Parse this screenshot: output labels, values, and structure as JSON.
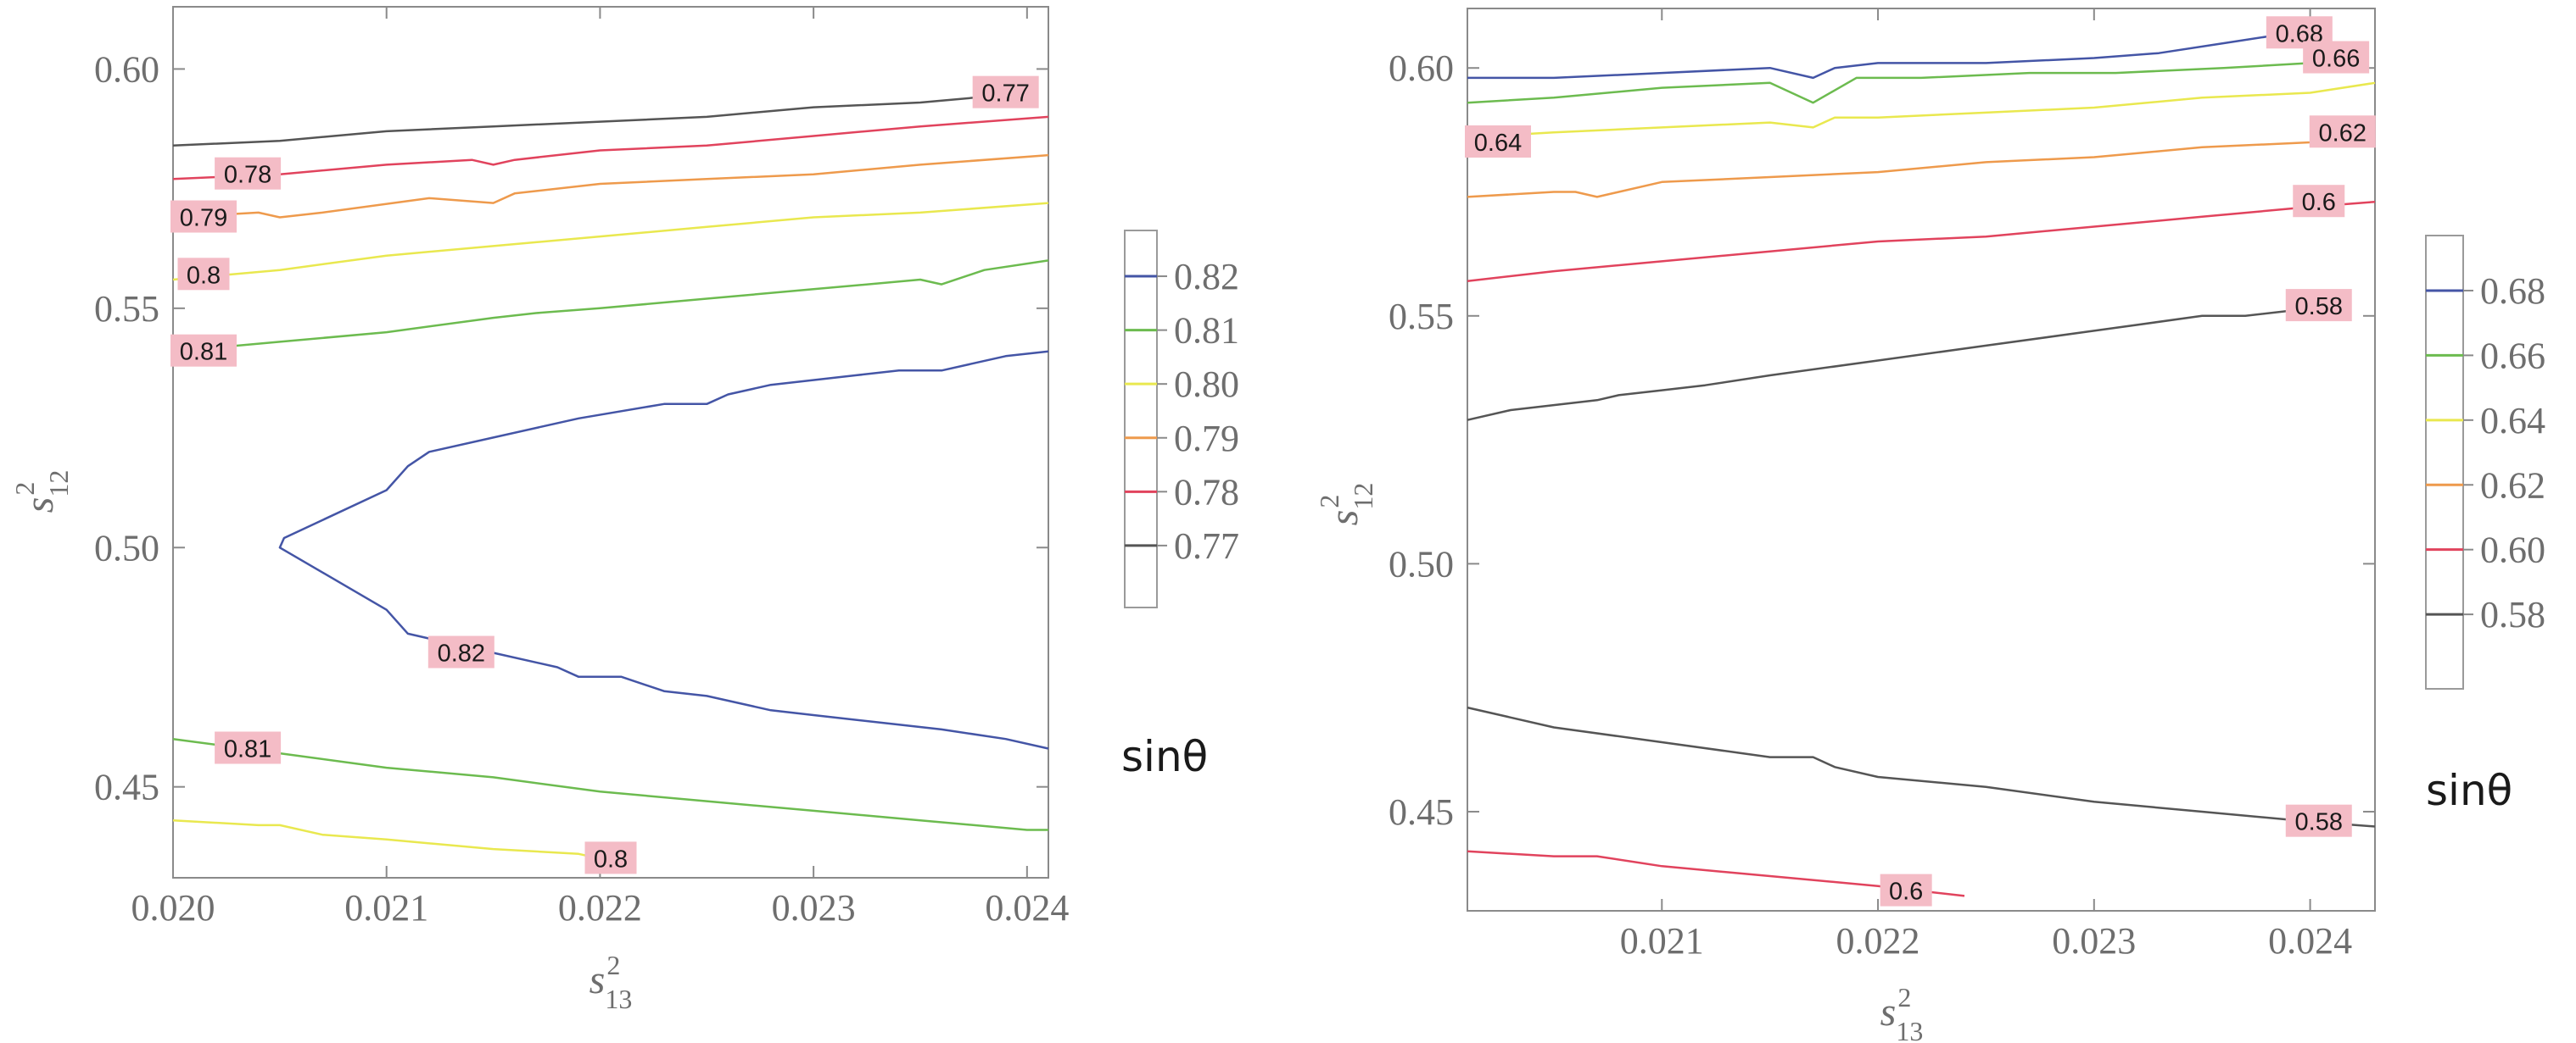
{
  "chart_data": [
    {
      "type": "line",
      "title": "",
      "xlabel": "s",
      "xlabel_sup": "2",
      "xlabel_sub": "13",
      "ylabel": "s",
      "ylabel_sup": "2",
      "ylabel_sub": "12",
      "xlim": [
        0.02,
        0.0241
      ],
      "ylim": [
        0.431,
        0.613
      ],
      "xticks": [
        "0.020",
        "0.021",
        "0.022",
        "0.023",
        "0.024"
      ],
      "yticks": [
        "0.45",
        "0.50",
        "0.55",
        "0.60"
      ],
      "legend_title": "sinθ",
      "legend": [
        {
          "label": "0.82",
          "color": "#4455a6"
        },
        {
          "label": "0.81",
          "color": "#6cbb4f"
        },
        {
          "label": "0.80",
          "color": "#e9e84f"
        },
        {
          "label": "0.79",
          "color": "#ee9a4c"
        },
        {
          "label": "0.78",
          "color": "#e1435d"
        },
        {
          "label": "0.77",
          "color": "#555555"
        }
      ],
      "series": [
        {
          "name": "0.77",
          "color": "#555555",
          "x": [
            0.02,
            0.0205,
            0.021,
            0.0215,
            0.022,
            0.0225,
            0.023,
            0.0235,
            0.024
          ],
          "y": [
            0.584,
            0.585,
            0.587,
            0.588,
            0.589,
            0.59,
            0.592,
            0.593,
            0.595
          ]
        },
        {
          "name": "0.78",
          "color": "#e1435d",
          "x": [
            0.02,
            0.0205,
            0.021,
            0.0214,
            0.0215,
            0.0216,
            0.022,
            0.0225,
            0.023,
            0.0235,
            0.0241
          ],
          "y": [
            0.577,
            0.578,
            0.58,
            0.581,
            0.58,
            0.581,
            0.583,
            0.584,
            0.586,
            0.588,
            0.59
          ]
        },
        {
          "name": "0.79",
          "color": "#ee9a4c",
          "x": [
            0.02,
            0.0204,
            0.0205,
            0.0207,
            0.0212,
            0.0215,
            0.0216,
            0.022,
            0.0225,
            0.023,
            0.0235,
            0.0241
          ],
          "y": [
            0.569,
            0.57,
            0.569,
            0.57,
            0.573,
            0.572,
            0.574,
            0.576,
            0.577,
            0.578,
            0.58,
            0.582
          ]
        },
        {
          "name": "0.80 (upper)",
          "color": "#e9e84f",
          "x": [
            0.02,
            0.0205,
            0.021,
            0.0215,
            0.022,
            0.0225,
            0.023,
            0.0235,
            0.0241
          ],
          "y": [
            0.556,
            0.558,
            0.561,
            0.563,
            0.565,
            0.567,
            0.569,
            0.57,
            0.572
          ]
        },
        {
          "name": "0.81 (upper)",
          "color": "#6cbb4f",
          "x": [
            0.02,
            0.0205,
            0.021,
            0.0215,
            0.0217,
            0.022,
            0.0225,
            0.023,
            0.0235,
            0.0236,
            0.0238,
            0.0241
          ],
          "y": [
            0.541,
            0.543,
            0.545,
            0.548,
            0.549,
            0.55,
            0.552,
            0.554,
            0.556,
            0.555,
            0.558,
            0.56
          ]
        },
        {
          "name": "0.82",
          "color": "#4455a6",
          "x": [
            0.0241,
            0.0239,
            0.0236,
            0.0234,
            0.0232,
            0.0228,
            0.0226,
            0.0225,
            0.0223,
            0.0219,
            0.0215,
            0.0212,
            0.0211,
            0.021,
            0.02052,
            0.0205,
            0.021,
            0.0211,
            0.0212,
            0.0215,
            0.0218,
            0.0219,
            0.0221,
            0.0223,
            0.0225,
            0.0228,
            0.023,
            0.0234,
            0.0236,
            0.0239,
            0.0241
          ],
          "y": [
            0.541,
            0.54,
            0.537,
            0.537,
            0.536,
            0.534,
            0.532,
            0.53,
            0.53,
            0.527,
            0.523,
            0.52,
            0.517,
            0.512,
            0.502,
            0.5,
            0.487,
            0.482,
            0.481,
            0.478,
            0.475,
            0.473,
            0.473,
            0.47,
            0.469,
            0.466,
            0.465,
            0.463,
            0.462,
            0.46,
            0.458
          ]
        },
        {
          "name": "0.81 (lower)",
          "color": "#6cbb4f",
          "x": [
            0.02,
            0.0205,
            0.021,
            0.0215,
            0.022,
            0.0225,
            0.023,
            0.0235,
            0.024,
            0.0241
          ],
          "y": [
            0.46,
            0.457,
            0.454,
            0.452,
            0.449,
            0.447,
            0.445,
            0.443,
            0.441,
            0.441
          ]
        },
        {
          "name": "0.80 (lower)",
          "color": "#e9e84f",
          "x": [
            0.02,
            0.0204,
            0.0205,
            0.0207,
            0.021,
            0.0215,
            0.0219,
            0.022
          ],
          "y": [
            0.443,
            0.442,
            0.442,
            0.44,
            0.439,
            0.437,
            0.436,
            0.435
          ]
        }
      ],
      "contour_labels": [
        {
          "text": "0.77",
          "x": 0.0239,
          "y": 0.595
        },
        {
          "text": "0.78",
          "x": 0.02035,
          "y": 0.578
        },
        {
          "text": "0.79",
          "x": 0.02002,
          "y": 0.569
        },
        {
          "text": "0.8",
          "x": 0.02008,
          "y": 0.557
        },
        {
          "text": "0.81",
          "x": 0.02002,
          "y": 0.541
        },
        {
          "text": "0.82",
          "x": 0.02135,
          "y": 0.478
        },
        {
          "text": "0.81",
          "x": 0.02035,
          "y": 0.458
        },
        {
          "text": "0.8",
          "x": 0.02205,
          "y": 0.435
        }
      ]
    },
    {
      "type": "line",
      "title": "",
      "xlabel": "s",
      "xlabel_sup": "2",
      "xlabel_sub": "13",
      "ylabel": "s",
      "ylabel_sup": "2",
      "ylabel_sub": "12",
      "xlim": [
        0.0201,
        0.0243
      ],
      "ylim": [
        0.43,
        0.612
      ],
      "xticks": [
        "0.021",
        "0.022",
        "0.023",
        "0.024"
      ],
      "yticks": [
        "0.45",
        "0.50",
        "0.55",
        "0.60"
      ],
      "legend_title": "sinθ",
      "legend": [
        {
          "label": "0.68",
          "color": "#4455a6"
        },
        {
          "label": "0.66",
          "color": "#6cbb4f"
        },
        {
          "label": "0.64",
          "color": "#e9e84f"
        },
        {
          "label": "0.62",
          "color": "#ee9a4c"
        },
        {
          "label": "0.60",
          "color": "#e1435d"
        },
        {
          "label": "0.58",
          "color": "#555555"
        }
      ],
      "series": [
        {
          "name": "0.68",
          "color": "#4455a6",
          "x": [
            0.0201,
            0.0205,
            0.021,
            0.0215,
            0.0217,
            0.0218,
            0.022,
            0.0225,
            0.023,
            0.0233,
            0.0236,
            0.0239
          ],
          "y": [
            0.598,
            0.598,
            0.599,
            0.6,
            0.598,
            0.6,
            0.601,
            0.601,
            0.602,
            0.603,
            0.605,
            0.607
          ]
        },
        {
          "name": "0.66",
          "color": "#6cbb4f",
          "x": [
            0.0201,
            0.0205,
            0.021,
            0.0215,
            0.0217,
            0.0219,
            0.0222,
            0.0227,
            0.0231,
            0.0236,
            0.024,
            0.0242
          ],
          "y": [
            0.593,
            0.594,
            0.596,
            0.597,
            0.593,
            0.598,
            0.598,
            0.599,
            0.599,
            0.6,
            0.601,
            0.602
          ]
        },
        {
          "name": "0.64",
          "color": "#e9e84f",
          "x": [
            0.0201,
            0.0205,
            0.021,
            0.0215,
            0.0217,
            0.0218,
            0.022,
            0.0225,
            0.023,
            0.0235,
            0.024,
            0.0243
          ],
          "y": [
            0.586,
            0.587,
            0.588,
            0.589,
            0.588,
            0.59,
            0.59,
            0.591,
            0.592,
            0.594,
            0.595,
            0.597
          ]
        },
        {
          "name": "0.62",
          "color": "#ee9a4c",
          "x": [
            0.0201,
            0.0205,
            0.0206,
            0.0207,
            0.021,
            0.0215,
            0.022,
            0.0225,
            0.023,
            0.0235,
            0.024,
            0.0243
          ],
          "y": [
            0.574,
            0.575,
            0.575,
            0.574,
            0.577,
            0.578,
            0.579,
            0.581,
            0.582,
            0.584,
            0.585,
            0.587
          ]
        },
        {
          "name": "0.60 (upper)",
          "color": "#e1435d",
          "x": [
            0.0201,
            0.0205,
            0.021,
            0.0215,
            0.022,
            0.0225,
            0.023,
            0.0235,
            0.024,
            0.0243
          ],
          "y": [
            0.557,
            0.559,
            0.561,
            0.563,
            0.565,
            0.566,
            0.568,
            0.57,
            0.572,
            0.573
          ]
        },
        {
          "name": "0.58 (upper)",
          "color": "#555555",
          "x": [
            0.0201,
            0.0203,
            0.0205,
            0.0207,
            0.0208,
            0.021,
            0.0212,
            0.0215,
            0.022,
            0.0225,
            0.023,
            0.0235,
            0.0237,
            0.0241
          ],
          "y": [
            0.529,
            0.531,
            0.532,
            0.533,
            0.534,
            0.535,
            0.536,
            0.538,
            0.541,
            0.544,
            0.547,
            0.55,
            0.55,
            0.552
          ]
        },
        {
          "name": "0.58 (lower)",
          "color": "#555555",
          "x": [
            0.0201,
            0.0203,
            0.0205,
            0.021,
            0.0215,
            0.0217,
            0.0218,
            0.022,
            0.0225,
            0.023,
            0.0235,
            0.024,
            0.0243
          ],
          "y": [
            0.471,
            0.469,
            0.467,
            0.464,
            0.461,
            0.461,
            0.459,
            0.457,
            0.455,
            0.452,
            0.45,
            0.448,
            0.447
          ]
        },
        {
          "name": "0.60 (lower)",
          "color": "#e1435d",
          "x": [
            0.0201,
            0.0205,
            0.0207,
            0.021,
            0.0215,
            0.022,
            0.0222,
            0.0224
          ],
          "y": [
            0.442,
            0.441,
            0.441,
            0.439,
            0.437,
            0.435,
            0.434,
            0.433
          ]
        }
      ],
      "contour_labels": [
        {
          "text": "0.68",
          "x": 0.02395,
          "y": 0.607
        },
        {
          "text": "0.66",
          "x": 0.02412,
          "y": 0.602
        },
        {
          "text": "0.64",
          "x": 0.02012,
          "y": 0.585
        },
        {
          "text": "0.62",
          "x": 0.02415,
          "y": 0.587
        },
        {
          "text": "0.6",
          "x": 0.02404,
          "y": 0.573
        },
        {
          "text": "0.58",
          "x": 0.02404,
          "y": 0.552
        },
        {
          "text": "0.58",
          "x": 0.02404,
          "y": 0.448
        },
        {
          "text": "0.6",
          "x": 0.02213,
          "y": 0.434
        }
      ]
    }
  ]
}
